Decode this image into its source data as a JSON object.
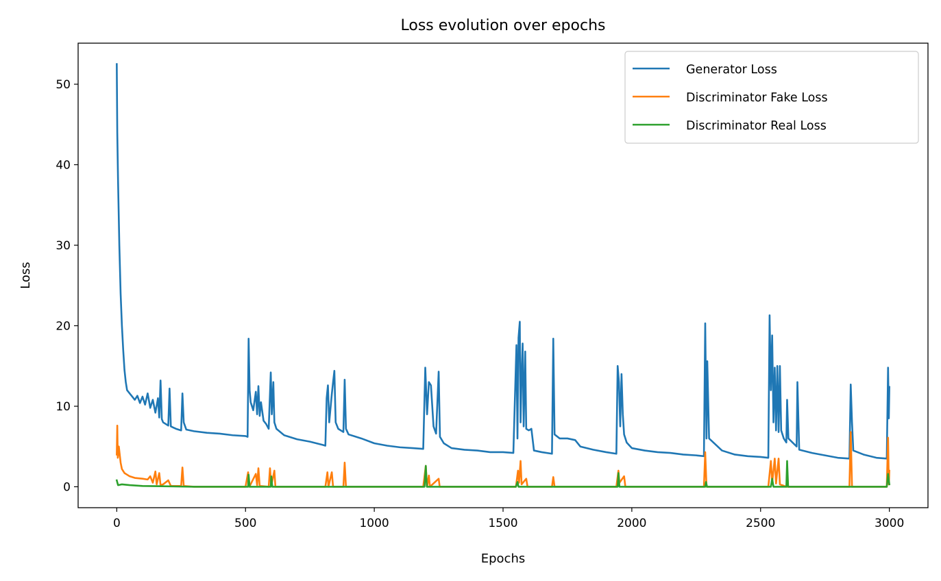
{
  "chart_data": {
    "type": "line",
    "title": "Loss evolution over epochs",
    "xlabel": "Epochs",
    "ylabel": "Loss",
    "xlim": [
      -150,
      3150
    ],
    "ylim": [
      -2.6,
      55.1
    ],
    "xticks": [
      0,
      500,
      1000,
      1500,
      2000,
      2500,
      3000
    ],
    "yticks": [
      0,
      10,
      20,
      30,
      40,
      50
    ],
    "grid": false,
    "legend_position": "top-right",
    "series": [
      {
        "name": "Generator Loss",
        "color": "#1f77b4",
        "points": [
          [
            0,
            52.5
          ],
          [
            2,
            44
          ],
          [
            5,
            38
          ],
          [
            10,
            30
          ],
          [
            15,
            24
          ],
          [
            20,
            20
          ],
          [
            25,
            17
          ],
          [
            30,
            14.5
          ],
          [
            35,
            13
          ],
          [
            40,
            12
          ],
          [
            50,
            11.6
          ],
          [
            60,
            11.2
          ],
          [
            70,
            10.8
          ],
          [
            80,
            11.3
          ],
          [
            90,
            10.4
          ],
          [
            100,
            11.2
          ],
          [
            110,
            10.2
          ],
          [
            120,
            11.6
          ],
          [
            130,
            9.8
          ],
          [
            140,
            10.8
          ],
          [
            150,
            9.2
          ],
          [
            160,
            11
          ],
          [
            165,
            8.6
          ],
          [
            170,
            13.2
          ],
          [
            175,
            8.4
          ],
          [
            180,
            8
          ],
          [
            190,
            7.8
          ],
          [
            200,
            7.6
          ],
          [
            205,
            12.2
          ],
          [
            210,
            7.5
          ],
          [
            230,
            7.2
          ],
          [
            250,
            7
          ],
          [
            255,
            11.6
          ],
          [
            260,
            8
          ],
          [
            270,
            7.1
          ],
          [
            300,
            6.9
          ],
          [
            350,
            6.7
          ],
          [
            400,
            6.6
          ],
          [
            450,
            6.4
          ],
          [
            500,
            6.3
          ],
          [
            508,
            6.2
          ],
          [
            512,
            18.4
          ],
          [
            516,
            12
          ],
          [
            520,
            10.5
          ],
          [
            530,
            9.5
          ],
          [
            540,
            11.8
          ],
          [
            545,
            9
          ],
          [
            550,
            12.5
          ],
          [
            555,
            8.8
          ],
          [
            560,
            10.5
          ],
          [
            570,
            8.2
          ],
          [
            580,
            7.8
          ],
          [
            590,
            7.2
          ],
          [
            598,
            14.2
          ],
          [
            602,
            9
          ],
          [
            608,
            13
          ],
          [
            612,
            8
          ],
          [
            620,
            7.2
          ],
          [
            650,
            6.4
          ],
          [
            700,
            5.9
          ],
          [
            750,
            5.6
          ],
          [
            800,
            5.2
          ],
          [
            810,
            5.1
          ],
          [
            815,
            11
          ],
          [
            820,
            12.6
          ],
          [
            825,
            8
          ],
          [
            835,
            11.5
          ],
          [
            840,
            13
          ],
          [
            845,
            14.4
          ],
          [
            850,
            8
          ],
          [
            860,
            7.2
          ],
          [
            880,
            6.8
          ],
          [
            885,
            13.3
          ],
          [
            890,
            7.2
          ],
          [
            900,
            6.5
          ],
          [
            950,
            6
          ],
          [
            1000,
            5.4
          ],
          [
            1050,
            5.1
          ],
          [
            1100,
            4.9
          ],
          [
            1150,
            4.8
          ],
          [
            1190,
            4.7
          ],
          [
            1198,
            14.8
          ],
          [
            1205,
            9
          ],
          [
            1212,
            13
          ],
          [
            1220,
            12.6
          ],
          [
            1230,
            7.5
          ],
          [
            1240,
            6.6
          ],
          [
            1250,
            14.3
          ],
          [
            1255,
            6.2
          ],
          [
            1270,
            5.4
          ],
          [
            1300,
            4.8
          ],
          [
            1350,
            4.6
          ],
          [
            1400,
            4.5
          ],
          [
            1450,
            4.3
          ],
          [
            1500,
            4.3
          ],
          [
            1540,
            4.2
          ],
          [
            1552,
            17.6
          ],
          [
            1556,
            6
          ],
          [
            1560,
            18.5
          ],
          [
            1565,
            20.5
          ],
          [
            1568,
            8
          ],
          [
            1572,
            14
          ],
          [
            1576,
            17.8
          ],
          [
            1580,
            7.5
          ],
          [
            1586,
            16.8
          ],
          [
            1590,
            7.2
          ],
          [
            1600,
            7
          ],
          [
            1610,
            7.2
          ],
          [
            1620,
            4.5
          ],
          [
            1650,
            4.3
          ],
          [
            1690,
            4.1
          ],
          [
            1695,
            18.4
          ],
          [
            1700,
            6.5
          ],
          [
            1720,
            6
          ],
          [
            1750,
            6
          ],
          [
            1780,
            5.8
          ],
          [
            1800,
            5
          ],
          [
            1850,
            4.6
          ],
          [
            1900,
            4.3
          ],
          [
            1940,
            4.1
          ],
          [
            1945,
            15
          ],
          [
            1950,
            13
          ],
          [
            1955,
            7.5
          ],
          [
            1960,
            14
          ],
          [
            1965,
            9
          ],
          [
            1970,
            6.5
          ],
          [
            1980,
            5.5
          ],
          [
            2000,
            4.8
          ],
          [
            2050,
            4.5
          ],
          [
            2100,
            4.3
          ],
          [
            2150,
            4.2
          ],
          [
            2200,
            4
          ],
          [
            2250,
            3.9
          ],
          [
            2280,
            3.8
          ],
          [
            2285,
            20.3
          ],
          [
            2290,
            6
          ],
          [
            2293,
            15.6
          ],
          [
            2300,
            6
          ],
          [
            2350,
            4.5
          ],
          [
            2400,
            4
          ],
          [
            2450,
            3.8
          ],
          [
            2500,
            3.7
          ],
          [
            2530,
            3.6
          ],
          [
            2535,
            21.3
          ],
          [
            2540,
            12
          ],
          [
            2545,
            18.8
          ],
          [
            2550,
            8
          ],
          [
            2555,
            14.8
          ],
          [
            2560,
            7
          ],
          [
            2565,
            15
          ],
          [
            2570,
            6.8
          ],
          [
            2575,
            15
          ],
          [
            2580,
            7
          ],
          [
            2590,
            6
          ],
          [
            2600,
            5.5
          ],
          [
            2603,
            10.8
          ],
          [
            2608,
            6
          ],
          [
            2640,
            5
          ],
          [
            2643,
            13
          ],
          [
            2650,
            4.6
          ],
          [
            2700,
            4.2
          ],
          [
            2750,
            3.9
          ],
          [
            2800,
            3.6
          ],
          [
            2845,
            3.5
          ],
          [
            2850,
            12.7
          ],
          [
            2855,
            8
          ],
          [
            2860,
            4.5
          ],
          [
            2900,
            4
          ],
          [
            2950,
            3.6
          ],
          [
            2990,
            3.5
          ],
          [
            2995,
            14.8
          ],
          [
            2998,
            8.5
          ],
          [
            3000,
            12.4
          ]
        ]
      },
      {
        "name": "Discriminator Fake Loss",
        "color": "#ff7f0e",
        "points": [
          [
            0,
            4
          ],
          [
            2,
            7.6
          ],
          [
            4,
            3.6
          ],
          [
            8,
            5
          ],
          [
            15,
            3
          ],
          [
            20,
            2.2
          ],
          [
            30,
            1.7
          ],
          [
            40,
            1.5
          ],
          [
            50,
            1.3
          ],
          [
            70,
            1.1
          ],
          [
            100,
            1
          ],
          [
            120,
            0.9
          ],
          [
            130,
            1.3
          ],
          [
            140,
            0.5
          ],
          [
            150,
            1.9
          ],
          [
            155,
            0.3
          ],
          [
            165,
            1.7
          ],
          [
            170,
            0.2
          ],
          [
            180,
            0.3
          ],
          [
            200,
            0.8
          ],
          [
            210,
            0.1
          ],
          [
            250,
            0.1
          ],
          [
            255,
            2.4
          ],
          [
            260,
            0.1
          ],
          [
            300,
            0
          ],
          [
            500,
            0
          ],
          [
            510,
            1.8
          ],
          [
            515,
            0
          ],
          [
            540,
            1.6
          ],
          [
            545,
            0.2
          ],
          [
            550,
            2.3
          ],
          [
            555,
            0.1
          ],
          [
            590,
            0
          ],
          [
            595,
            2.3
          ],
          [
            600,
            0.1
          ],
          [
            612,
            2
          ],
          [
            616,
            0
          ],
          [
            810,
            0
          ],
          [
            818,
            1.8
          ],
          [
            822,
            0
          ],
          [
            835,
            1.8
          ],
          [
            840,
            0
          ],
          [
            880,
            0
          ],
          [
            885,
            3
          ],
          [
            890,
            0
          ],
          [
            1190,
            0
          ],
          [
            1200,
            2.6
          ],
          [
            1205,
            0
          ],
          [
            1212,
            1.4
          ],
          [
            1216,
            0
          ],
          [
            1250,
            1
          ],
          [
            1254,
            0
          ],
          [
            1550,
            0
          ],
          [
            1558,
            2
          ],
          [
            1562,
            0.5
          ],
          [
            1568,
            3.2
          ],
          [
            1572,
            0.3
          ],
          [
            1590,
            1
          ],
          [
            1595,
            0
          ],
          [
            1690,
            0
          ],
          [
            1695,
            1.2
          ],
          [
            1700,
            0
          ],
          [
            1940,
            0
          ],
          [
            1948,
            2
          ],
          [
            1952,
            0.5
          ],
          [
            1970,
            1.3
          ],
          [
            1975,
            0
          ],
          [
            2280,
            0
          ],
          [
            2285,
            4.3
          ],
          [
            2290,
            0
          ],
          [
            2530,
            0
          ],
          [
            2540,
            3.2
          ],
          [
            2545,
            0.5
          ],
          [
            2555,
            3.5
          ],
          [
            2560,
            0.4
          ],
          [
            2570,
            3.5
          ],
          [
            2575,
            0.3
          ],
          [
            2600,
            0
          ],
          [
            2845,
            0
          ],
          [
            2850,
            6.8
          ],
          [
            2855,
            0
          ],
          [
            2990,
            0
          ],
          [
            2995,
            6.1
          ],
          [
            2998,
            0.3
          ],
          [
            3000,
            2
          ]
        ]
      },
      {
        "name": "Discriminator Real Loss",
        "color": "#2ca02c",
        "points": [
          [
            0,
            0.8
          ],
          [
            5,
            0.2
          ],
          [
            20,
            0.3
          ],
          [
            50,
            0.2
          ],
          [
            100,
            0.1
          ],
          [
            200,
            0.05
          ],
          [
            300,
            0
          ],
          [
            510,
            0
          ],
          [
            512,
            1.5
          ],
          [
            516,
            0
          ],
          [
            598,
            0
          ],
          [
            600,
            1.3
          ],
          [
            604,
            0
          ],
          [
            1195,
            0
          ],
          [
            1200,
            2.6
          ],
          [
            1204,
            0
          ],
          [
            1550,
            0
          ],
          [
            1556,
            0.6
          ],
          [
            1560,
            0
          ],
          [
            1945,
            0
          ],
          [
            1948,
            1.7
          ],
          [
            1952,
            0
          ],
          [
            2285,
            0
          ],
          [
            2288,
            0.6
          ],
          [
            2292,
            0
          ],
          [
            2540,
            0
          ],
          [
            2545,
            1
          ],
          [
            2550,
            0
          ],
          [
            2600,
            0
          ],
          [
            2603,
            3.2
          ],
          [
            2607,
            0
          ],
          [
            2990,
            0
          ],
          [
            2995,
            1.6
          ],
          [
            3000,
            0.3
          ]
        ]
      }
    ]
  }
}
